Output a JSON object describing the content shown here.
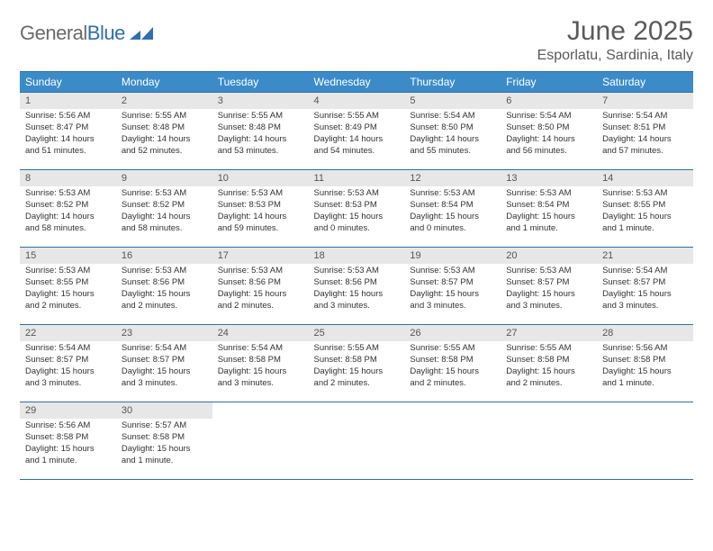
{
  "brand": {
    "word1": "General",
    "word2": "Blue",
    "word1_color": "#6a6a6a",
    "word2_color": "#2f6fb0",
    "mark_color": "#2f6fb0"
  },
  "title": "June 2025",
  "location": "Esporlatu, Sardinia, Italy",
  "colors": {
    "header_bg": "#3b8bc9",
    "header_text": "#ffffff",
    "row_border": "#2f6fb0",
    "daynum_bg": "#e7e7e7",
    "daynum_text": "#555555",
    "body_text": "#333333",
    "page_bg": "#ffffff",
    "title_text": "#5a5a5a"
  },
  "weekdays": [
    "Sunday",
    "Monday",
    "Tuesday",
    "Wednesday",
    "Thursday",
    "Friday",
    "Saturday"
  ],
  "rows": [
    [
      {
        "n": "1",
        "sr": "5:56 AM",
        "ss": "8:47 PM",
        "dl": "14 hours and 51 minutes."
      },
      {
        "n": "2",
        "sr": "5:55 AM",
        "ss": "8:48 PM",
        "dl": "14 hours and 52 minutes."
      },
      {
        "n": "3",
        "sr": "5:55 AM",
        "ss": "8:48 PM",
        "dl": "14 hours and 53 minutes."
      },
      {
        "n": "4",
        "sr": "5:55 AM",
        "ss": "8:49 PM",
        "dl": "14 hours and 54 minutes."
      },
      {
        "n": "5",
        "sr": "5:54 AM",
        "ss": "8:50 PM",
        "dl": "14 hours and 55 minutes."
      },
      {
        "n": "6",
        "sr": "5:54 AM",
        "ss": "8:50 PM",
        "dl": "14 hours and 56 minutes."
      },
      {
        "n": "7",
        "sr": "5:54 AM",
        "ss": "8:51 PM",
        "dl": "14 hours and 57 minutes."
      }
    ],
    [
      {
        "n": "8",
        "sr": "5:53 AM",
        "ss": "8:52 PM",
        "dl": "14 hours and 58 minutes."
      },
      {
        "n": "9",
        "sr": "5:53 AM",
        "ss": "8:52 PM",
        "dl": "14 hours and 58 minutes."
      },
      {
        "n": "10",
        "sr": "5:53 AM",
        "ss": "8:53 PM",
        "dl": "14 hours and 59 minutes."
      },
      {
        "n": "11",
        "sr": "5:53 AM",
        "ss": "8:53 PM",
        "dl": "15 hours and 0 minutes."
      },
      {
        "n": "12",
        "sr": "5:53 AM",
        "ss": "8:54 PM",
        "dl": "15 hours and 0 minutes."
      },
      {
        "n": "13",
        "sr": "5:53 AM",
        "ss": "8:54 PM",
        "dl": "15 hours and 1 minute."
      },
      {
        "n": "14",
        "sr": "5:53 AM",
        "ss": "8:55 PM",
        "dl": "15 hours and 1 minute."
      }
    ],
    [
      {
        "n": "15",
        "sr": "5:53 AM",
        "ss": "8:55 PM",
        "dl": "15 hours and 2 minutes."
      },
      {
        "n": "16",
        "sr": "5:53 AM",
        "ss": "8:56 PM",
        "dl": "15 hours and 2 minutes."
      },
      {
        "n": "17",
        "sr": "5:53 AM",
        "ss": "8:56 PM",
        "dl": "15 hours and 2 minutes."
      },
      {
        "n": "18",
        "sr": "5:53 AM",
        "ss": "8:56 PM",
        "dl": "15 hours and 3 minutes."
      },
      {
        "n": "19",
        "sr": "5:53 AM",
        "ss": "8:57 PM",
        "dl": "15 hours and 3 minutes."
      },
      {
        "n": "20",
        "sr": "5:53 AM",
        "ss": "8:57 PM",
        "dl": "15 hours and 3 minutes."
      },
      {
        "n": "21",
        "sr": "5:54 AM",
        "ss": "8:57 PM",
        "dl": "15 hours and 3 minutes."
      }
    ],
    [
      {
        "n": "22",
        "sr": "5:54 AM",
        "ss": "8:57 PM",
        "dl": "15 hours and 3 minutes."
      },
      {
        "n": "23",
        "sr": "5:54 AM",
        "ss": "8:57 PM",
        "dl": "15 hours and 3 minutes."
      },
      {
        "n": "24",
        "sr": "5:54 AM",
        "ss": "8:58 PM",
        "dl": "15 hours and 3 minutes."
      },
      {
        "n": "25",
        "sr": "5:55 AM",
        "ss": "8:58 PM",
        "dl": "15 hours and 2 minutes."
      },
      {
        "n": "26",
        "sr": "5:55 AM",
        "ss": "8:58 PM",
        "dl": "15 hours and 2 minutes."
      },
      {
        "n": "27",
        "sr": "5:55 AM",
        "ss": "8:58 PM",
        "dl": "15 hours and 2 minutes."
      },
      {
        "n": "28",
        "sr": "5:56 AM",
        "ss": "8:58 PM",
        "dl": "15 hours and 1 minute."
      }
    ],
    [
      {
        "n": "29",
        "sr": "5:56 AM",
        "ss": "8:58 PM",
        "dl": "15 hours and 1 minute."
      },
      {
        "n": "30",
        "sr": "5:57 AM",
        "ss": "8:58 PM",
        "dl": "15 hours and 1 minute."
      },
      {
        "empty": true
      },
      {
        "empty": true
      },
      {
        "empty": true
      },
      {
        "empty": true
      },
      {
        "empty": true
      }
    ]
  ],
  "labels": {
    "sunrise": "Sunrise:",
    "sunset": "Sunset:",
    "daylight": "Daylight:"
  }
}
